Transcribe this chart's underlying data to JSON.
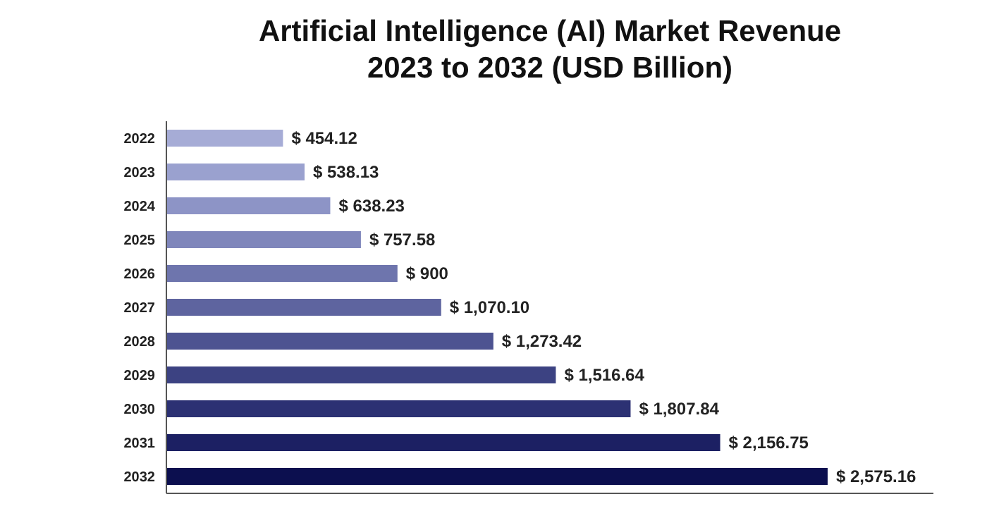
{
  "chart_data": {
    "type": "bar",
    "orientation": "horizontal",
    "title": "Artificial Intelligence (AI) Market Revenue\n2023 to 2032 (USD Billion)",
    "categories": [
      "2022",
      "2023",
      "2024",
      "2025",
      "2026",
      "2027",
      "2028",
      "2029",
      "2030",
      "2031",
      "2032"
    ],
    "values": [
      454.12,
      538.13,
      638.23,
      757.58,
      900,
      1070.1,
      1273.42,
      1516.64,
      1807.84,
      2156.75,
      2575.16
    ],
    "colors": [
      "#a6acd6",
      "#9aa1cf",
      "#8d94c6",
      "#7f86bb",
      "#6e75ad",
      "#5e649f",
      "#4d5391",
      "#3c4282",
      "#2c3173",
      "#1c2063",
      "#0c0f4f"
    ],
    "value_labels": [
      "$ 454.12",
      "$ 538.13",
      "$ 638.23",
      "$ 757.58",
      "$ 900",
      "$ 1,070.10",
      "$ 1,273.42",
      "$ 1,516.64",
      "$ 1,807.84",
      "$ 2,156.75",
      "$ 2,575.16"
    ]
  }
}
